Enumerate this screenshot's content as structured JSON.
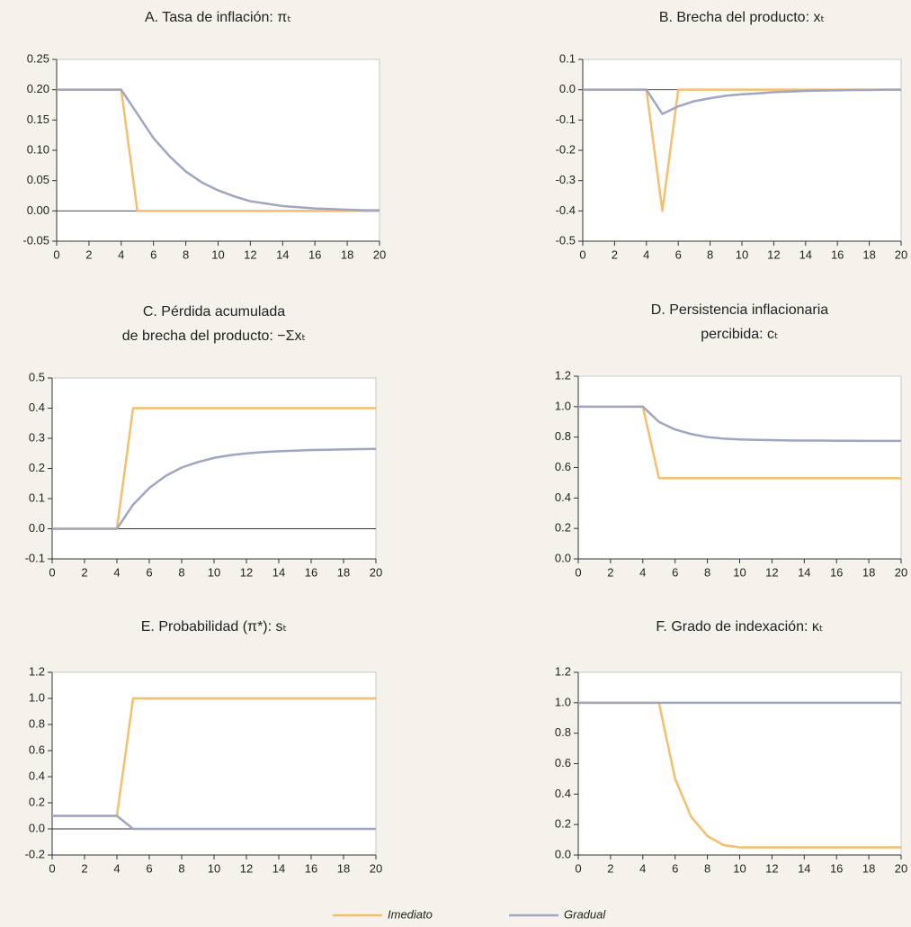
{
  "legend": [
    {
      "name": "Imediato",
      "color": "#f5be6c"
    },
    {
      "name": "Gradual",
      "color": "#9ea6c2"
    }
  ],
  "chart_data": [
    {
      "type": "line",
      "title": "A. Tasa de inflación: πₜ",
      "x": [
        0,
        1,
        2,
        3,
        4,
        5,
        6,
        7,
        8,
        9,
        10,
        11,
        12,
        13,
        14,
        15,
        16,
        17,
        18,
        19,
        20
      ],
      "xlim": [
        0,
        20
      ],
      "xticks": [
        0,
        2,
        4,
        6,
        8,
        10,
        12,
        14,
        16,
        18,
        20
      ],
      "ylim": [
        -0.05,
        0.25
      ],
      "yticks": [
        -0.05,
        {
          "value": 0,
          "label": "0.00"
        },
        0.05,
        {
          "value": 0.1,
          "label": "0.10"
        },
        0.15,
        {
          "value": 0.2,
          "label": "0.20"
        },
        0.25
      ],
      "series": [
        {
          "values": [
            0.2,
            0.2,
            0.2,
            0.2,
            0.2,
            0,
            0,
            0,
            0,
            0,
            0,
            0,
            0,
            0,
            0,
            0,
            0,
            0,
            0,
            0,
            0
          ]
        },
        {
          "values": [
            0.2,
            0.2,
            0.2,
            0.2,
            0.2,
            0.16,
            0.12,
            0.09,
            0.065,
            0.047,
            0.034,
            0.024,
            0.016,
            0.012,
            0.008,
            0.006,
            0.004,
            0.003,
            0.002,
            0.001,
            0.001
          ]
        }
      ]
    },
    {
      "type": "line",
      "title": "B. Brecha del producto: xₜ",
      "x": [
        0,
        1,
        2,
        3,
        4,
        5,
        6,
        7,
        8,
        9,
        10,
        11,
        12,
        13,
        14,
        15,
        16,
        17,
        18,
        19,
        20
      ],
      "xlim": [
        0,
        20
      ],
      "xticks": [
        0,
        2,
        4,
        6,
        8,
        10,
        12,
        14,
        16,
        18,
        20
      ],
      "ylim": [
        -0.5,
        0.1
      ],
      "yticks": [
        -0.5,
        -0.4,
        -0.3,
        -0.2,
        -0.1,
        {
          "value": 0,
          "label": "0.0"
        },
        0.1
      ],
      "series": [
        {
          "values": [
            0,
            0,
            0,
            0,
            0,
            -0.4,
            0,
            0,
            0,
            0,
            0,
            0,
            0,
            0,
            0,
            0,
            0,
            0,
            0,
            0,
            0
          ]
        },
        {
          "values": [
            0,
            0,
            0,
            0,
            0,
            -0.08,
            -0.055,
            -0.038,
            -0.028,
            -0.02,
            -0.015,
            -0.012,
            -0.008,
            -0.006,
            -0.004,
            -0.003,
            -0.002,
            -0.001,
            -0.001,
            0,
            0
          ]
        }
      ]
    },
    {
      "type": "line",
      "title": [
        "C. Pérdida acumulada",
        "de brecha del producto: −Σxₜ"
      ],
      "x": [
        0,
        1,
        2,
        3,
        4,
        5,
        6,
        7,
        8,
        9,
        10,
        11,
        12,
        13,
        14,
        15,
        16,
        17,
        18,
        19,
        20
      ],
      "xlim": [
        0,
        20
      ],
      "xticks": [
        0,
        2,
        4,
        6,
        8,
        10,
        12,
        14,
        16,
        18,
        20
      ],
      "ylim": [
        -0.1,
        0.5
      ],
      "yticks": [
        -0.1,
        {
          "value": 0,
          "label": "0.0"
        },
        0.1,
        0.2,
        0.3,
        0.4,
        0.5
      ],
      "series": [
        {
          "values": [
            0,
            0,
            0,
            0,
            0,
            0.4,
            0.4,
            0.4,
            0.4,
            0.4,
            0.4,
            0.4,
            0.4,
            0.4,
            0.4,
            0.4,
            0.4,
            0.4,
            0.4,
            0.4,
            0.4
          ]
        },
        {
          "values": [
            0,
            0,
            0,
            0,
            0,
            0.08,
            0.135,
            0.175,
            0.203,
            0.221,
            0.235,
            0.244,
            0.25,
            0.254,
            0.257,
            0.259,
            0.261,
            0.262,
            0.263,
            0.264,
            0.265
          ]
        }
      ]
    },
    {
      "type": "line",
      "title": [
        "D. Persistencia inflacionaria",
        "percibida: cₜ"
      ],
      "x": [
        0,
        1,
        2,
        3,
        4,
        5,
        6,
        7,
        8,
        9,
        10,
        11,
        12,
        13,
        14,
        15,
        16,
        17,
        18,
        19,
        20
      ],
      "xlim": [
        0,
        20
      ],
      "xticks": [
        0,
        2,
        4,
        6,
        8,
        10,
        12,
        14,
        16,
        18,
        20
      ],
      "ylim": [
        0,
        1.2
      ],
      "yticks": [
        {
          "value": 0,
          "label": "0.0"
        },
        0.2,
        0.4,
        0.6,
        0.8,
        {
          "value": 1,
          "label": "1.0"
        },
        1.2
      ],
      "series": [
        {
          "values": [
            1,
            1,
            1,
            1,
            1,
            0.53,
            0.53,
            0.53,
            0.53,
            0.53,
            0.53,
            0.53,
            0.53,
            0.53,
            0.53,
            0.53,
            0.53,
            0.53,
            0.53,
            0.53,
            0.53
          ]
        },
        {
          "values": [
            1,
            1,
            1,
            1,
            1,
            0.9,
            0.85,
            0.82,
            0.8,
            0.79,
            0.785,
            0.782,
            0.78,
            0.778,
            0.777,
            0.777,
            0.776,
            0.776,
            0.775,
            0.775,
            0.775
          ]
        }
      ]
    },
    {
      "type": "line",
      "title": "E. Probabilidad (π*): sₜ",
      "x": [
        0,
        1,
        2,
        3,
        4,
        5,
        6,
        7,
        8,
        9,
        10,
        11,
        12,
        13,
        14,
        15,
        16,
        17,
        18,
        19,
        20
      ],
      "xlim": [
        0,
        20
      ],
      "xticks": [
        0,
        2,
        4,
        6,
        8,
        10,
        12,
        14,
        16,
        18,
        20
      ],
      "ylim": [
        -0.2,
        1.2
      ],
      "yticks": [
        -0.2,
        {
          "value": 0,
          "label": "0.0"
        },
        0.2,
        0.4,
        0.6,
        0.8,
        {
          "value": 1,
          "label": "1.0"
        },
        1.2
      ],
      "series": [
        {
          "values": [
            0.1,
            0.1,
            0.1,
            0.1,
            0.1,
            1,
            1,
            1,
            1,
            1,
            1,
            1,
            1,
            1,
            1,
            1,
            1,
            1,
            1,
            1,
            1
          ]
        },
        {
          "values": [
            0.1,
            0.1,
            0.1,
            0.1,
            0.1,
            0,
            0,
            0,
            0,
            0,
            0,
            0,
            0,
            0,
            0,
            0,
            0,
            0,
            0,
            0,
            0
          ]
        }
      ]
    },
    {
      "type": "line",
      "title": "F. Grado de indexación: κₜ",
      "x": [
        0,
        1,
        2,
        3,
        4,
        5,
        6,
        7,
        8,
        9,
        10,
        11,
        12,
        13,
        14,
        15,
        16,
        17,
        18,
        19,
        20
      ],
      "xlim": [
        0,
        20
      ],
      "xticks": [
        0,
        2,
        4,
        6,
        8,
        10,
        12,
        14,
        16,
        18,
        20
      ],
      "ylim": [
        0,
        1.2
      ],
      "yticks": [
        {
          "value": 0,
          "label": "0.0"
        },
        0.2,
        0.4,
        0.6,
        0.8,
        {
          "value": 1,
          "label": "1.0"
        },
        1.2
      ],
      "series": [
        {
          "values": [
            1,
            1,
            1,
            1,
            1,
            1,
            0.5,
            0.25,
            0.125,
            0.065,
            0.05,
            0.05,
            0.05,
            0.05,
            0.05,
            0.05,
            0.05,
            0.05,
            0.05,
            0.05,
            0.05
          ]
        },
        {
          "values": [
            1,
            1,
            1,
            1,
            1,
            1,
            1,
            1,
            1,
            1,
            1,
            1,
            1,
            1,
            1,
            1,
            1,
            1,
            1,
            1,
            1
          ]
        }
      ]
    }
  ]
}
